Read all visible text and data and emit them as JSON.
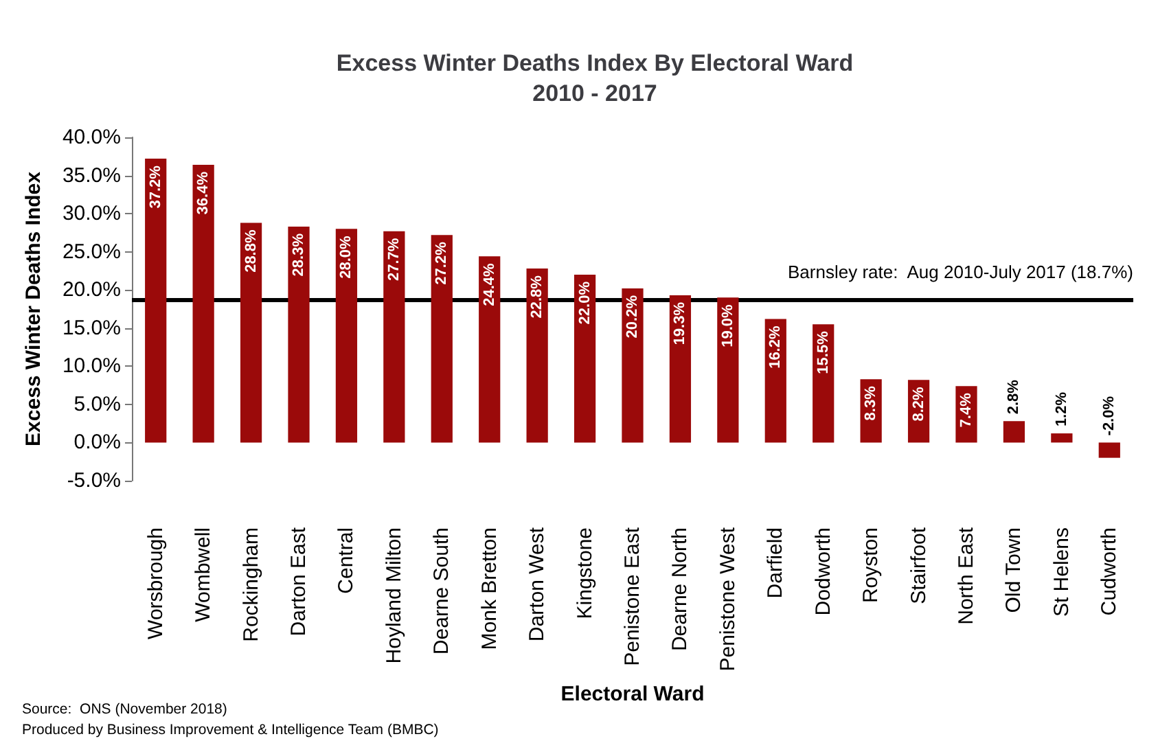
{
  "chart_data": {
    "type": "bar",
    "title": "Excess Winter Deaths Index By Electoral Ward\n2010 - 2017",
    "xlabel": "Electoral Ward",
    "ylabel": "Excess Winter Deaths Index",
    "categories": [
      "Worsbrough",
      "Wombwell",
      "Rockingham",
      "Darton East",
      "Central",
      "Hoyland Milton",
      "Dearne South",
      "Monk Bretton",
      "Darton West",
      "Kingstone",
      "Penistone East",
      "Dearne North",
      "Penistone West",
      "Darfield",
      "Dodworth",
      "Royston",
      "Stairfoot",
      "North East",
      "Old Town",
      "St Helens",
      "Cudworth"
    ],
    "values": [
      37.2,
      36.4,
      28.8,
      28.3,
      28.0,
      27.7,
      27.2,
      24.4,
      22.8,
      22.0,
      20.2,
      19.3,
      19.0,
      16.2,
      15.5,
      8.3,
      8.2,
      7.4,
      2.8,
      1.2,
      -2.0
    ],
    "value_labels": [
      "37.2%",
      "36.4%",
      "28.8%",
      "28.3%",
      "28.0%",
      "27.7%",
      "27.2%",
      "24.4%",
      "22.8%",
      "22.0%",
      "20.2%",
      "19.3%",
      "19.0%",
      "16.2%",
      "15.5%",
      "8.3%",
      "8.2%",
      "7.4%",
      "2.8%",
      "1.2%",
      "-2.0%"
    ],
    "color": "#9b0a0a",
    "ylim": [
      -5,
      40
    ],
    "yticks": [
      {
        "value": -5,
        "label": "-5.0%"
      },
      {
        "value": 0,
        "label": "0.0%"
      },
      {
        "value": 5,
        "label": "5.0%"
      },
      {
        "value": 10,
        "label": "10.0%"
      },
      {
        "value": 15,
        "label": "15.0%"
      },
      {
        "value": 20,
        "label": "20.0%"
      },
      {
        "value": 25,
        "label": "25.0%"
      },
      {
        "value": 30,
        "label": "30.0%"
      },
      {
        "value": 35,
        "label": "35.0%"
      },
      {
        "value": 40,
        "label": "40.0%"
      }
    ],
    "grid": false,
    "ref_lines": [
      {
        "axis": "y",
        "value": 18.7,
        "label": "Barnsley rate:  Aug 2010-July 2017 (18.7%)",
        "color": "#000000"
      }
    ],
    "annotations": [
      "Source:  ONS (November 2018)",
      "Produced by Business Improvement & Intelligence Team (BMBC)"
    ]
  }
}
